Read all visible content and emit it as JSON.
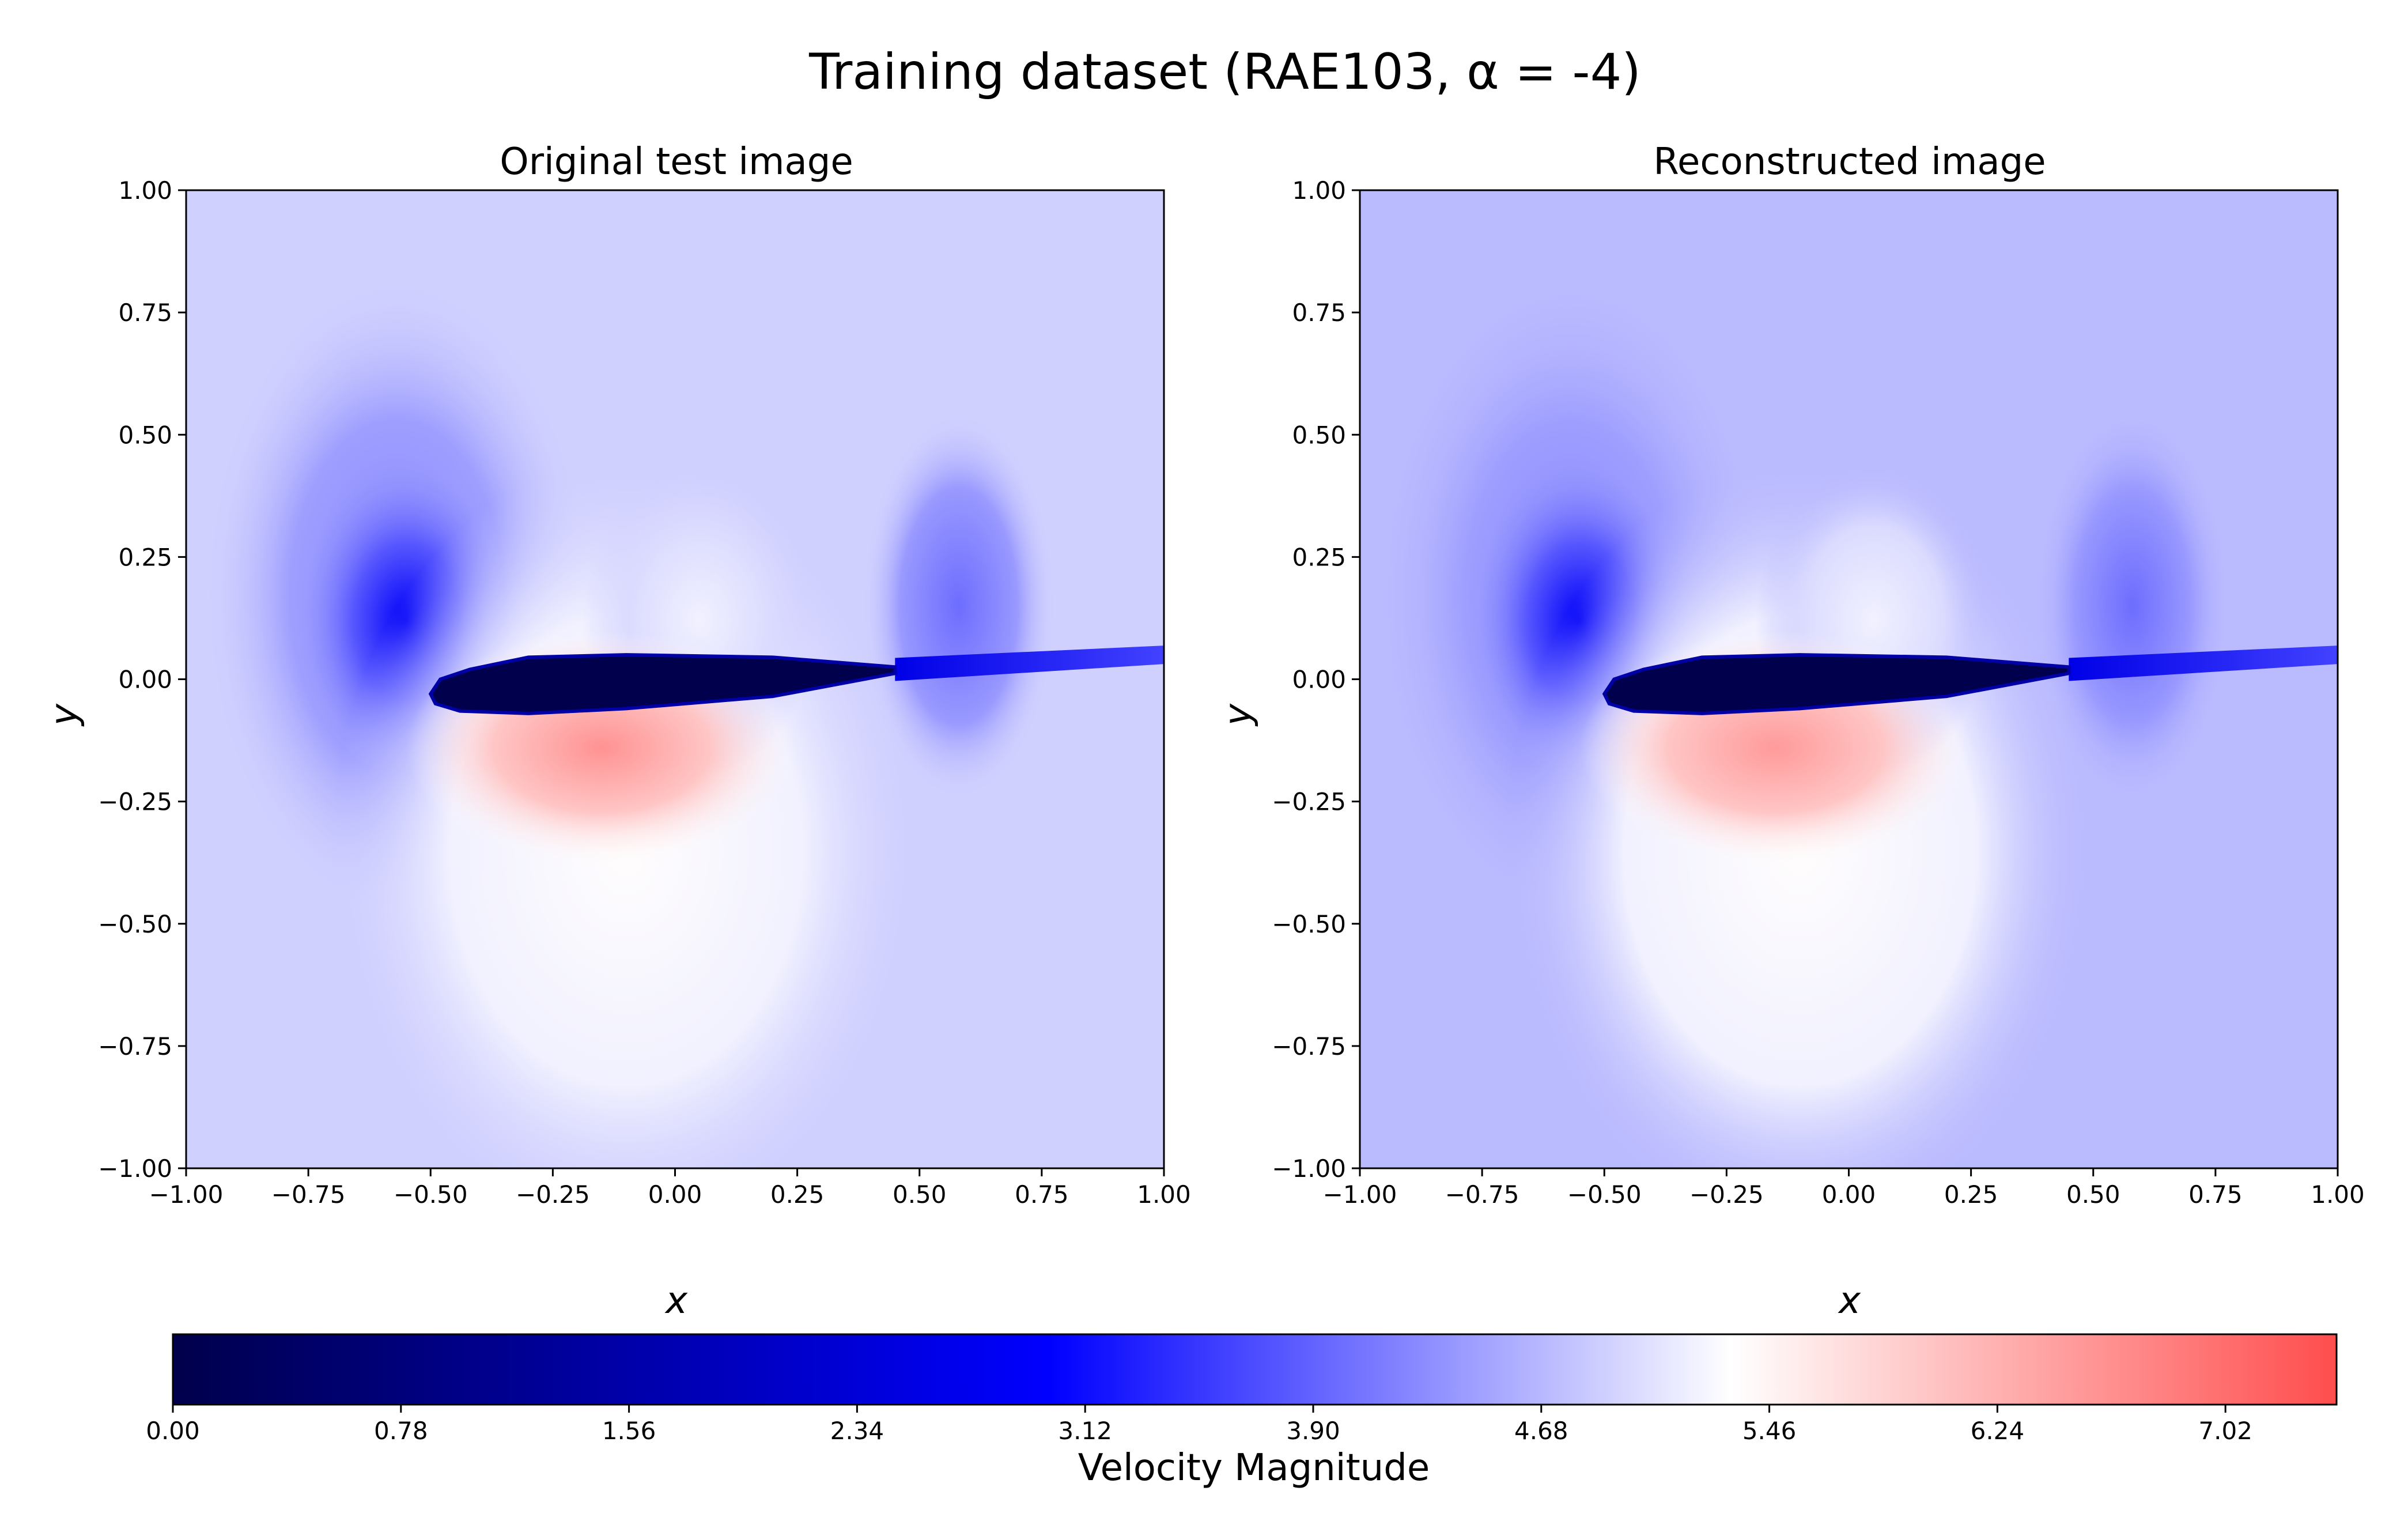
{
  "figure": {
    "suptitle": "Training dataset (RAE103, α = -4)"
  },
  "chart_data": [
    {
      "type": "heatmap",
      "title": "Original test image",
      "xlabel": "x",
      "ylabel": "y",
      "xlim": [
        -1.0,
        1.0
      ],
      "ylim": [
        -1.0,
        1.0
      ],
      "xticks": [
        "−1.00",
        "−0.75",
        "−0.50",
        "−0.25",
        "0.00",
        "0.25",
        "0.50",
        "0.75",
        "1.00"
      ],
      "yticks": [
        "−1.00",
        "−0.75",
        "−0.50",
        "−0.25",
        "0.00",
        "0.25",
        "0.50",
        "0.75",
        "1.00"
      ],
      "field": "velocity magnitude",
      "freestream_value": 4.9,
      "features": {
        "airfoil": {
          "leading_edge_x": -0.5,
          "trailing_edge_x": 0.45,
          "y_at_leading_edge": -0.03,
          "y_at_trailing_edge": 0.02,
          "value": 0.0
        },
        "wake": {
          "start_x": 0.45,
          "end_x": 1.0,
          "value_at_start": 2.6,
          "value_at_end": 3.6
        },
        "stagnation_low_lobe": {
          "center": [
            -0.55,
            0.12
          ],
          "min_value": 2.9
        },
        "lower_surface_high_region": {
          "center": [
            -0.15,
            -0.12
          ],
          "max_value": 6.6
        }
      }
    },
    {
      "type": "heatmap",
      "title": "Reconstructed image",
      "xlabel": "x",
      "ylabel": "y",
      "xlim": [
        -1.0,
        1.0
      ],
      "ylim": [
        -1.0,
        1.0
      ],
      "xticks": [
        "−1.00",
        "−0.75",
        "−0.50",
        "−0.25",
        "0.00",
        "0.25",
        "0.50",
        "0.75",
        "1.00"
      ],
      "yticks": [
        "−1.00",
        "−0.75",
        "−0.50",
        "−0.25",
        "0.00",
        "0.25",
        "0.50",
        "0.75",
        "1.00"
      ],
      "field": "velocity magnitude",
      "freestream_value": 4.7,
      "features": {
        "airfoil": {
          "leading_edge_x": -0.5,
          "trailing_edge_x": 0.45,
          "y_at_leading_edge": -0.03,
          "y_at_trailing_edge": 0.02,
          "value": 0.0
        },
        "wake": {
          "start_x": 0.45,
          "end_x": 1.0,
          "value_at_start": 2.6,
          "value_at_end": 3.6
        },
        "stagnation_low_lobe": {
          "center": [
            -0.55,
            0.12
          ],
          "min_value": 2.9
        },
        "lower_surface_high_region": {
          "center": [
            -0.15,
            -0.12
          ],
          "max_value": 6.5
        }
      }
    }
  ],
  "colorbar": {
    "label": "Velocity Magnitude",
    "range": [
      0.0,
      7.4
    ],
    "ticks": [
      "0.00",
      "0.78",
      "1.56",
      "2.34",
      "3.12",
      "3.90",
      "4.68",
      "5.46",
      "6.24",
      "7.02"
    ],
    "tick_values": [
      0.0,
      0.78,
      1.56,
      2.34,
      3.12,
      3.9,
      4.68,
      5.46,
      6.24,
      7.02
    ],
    "colormap": [
      {
        "value": 0.0,
        "color": "#00004c"
      },
      {
        "value": 3.0,
        "color": "#0000ff"
      },
      {
        "value": 5.33,
        "color": "#ffffff"
      },
      {
        "value": 7.4,
        "color": "#ff4d4d"
      }
    ]
  }
}
